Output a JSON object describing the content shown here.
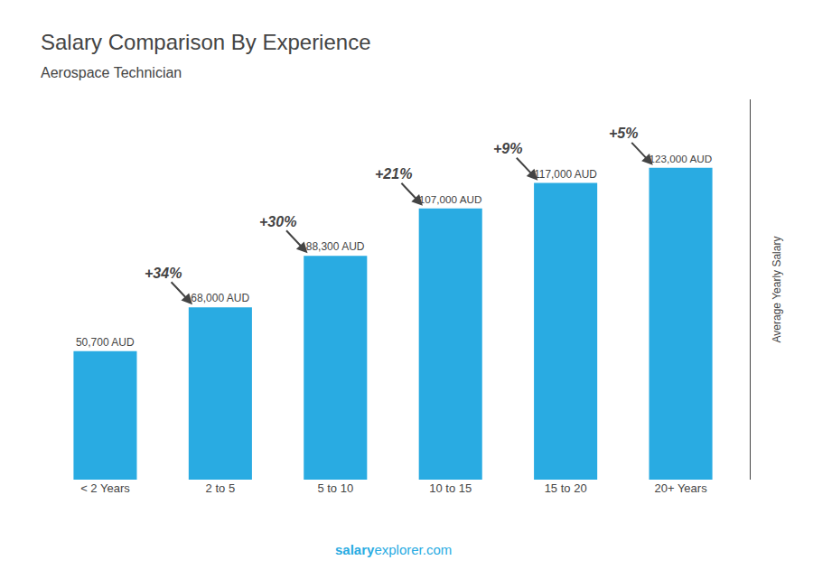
{
  "chart_data": {
    "type": "bar",
    "title": "Salary Comparison By Experience",
    "subtitle": "Aerospace Technician",
    "ylabel": "Average Yearly Salary",
    "categories": [
      "< 2 Years",
      "2 to 5",
      "5 to 10",
      "10 to 15",
      "15 to 20",
      "20+ Years"
    ],
    "values": [
      50700,
      68000,
      88300,
      107000,
      117000,
      123000
    ],
    "value_labels": [
      "50,700 AUD",
      "68,000 AUD",
      "88,300 AUD",
      "107,000 AUD",
      "117,000 AUD",
      "123,000 AUD"
    ],
    "data_labels": true,
    "annotations": [
      "+34%",
      "+30%",
      "+21%",
      "+9%",
      "+5%"
    ],
    "watermark": [
      "salary",
      "explorer.com"
    ],
    "color": "#29ABE2",
    "ylim": [
      0,
      150000
    ],
    "grid": false,
    "tick_labels": "x"
  }
}
